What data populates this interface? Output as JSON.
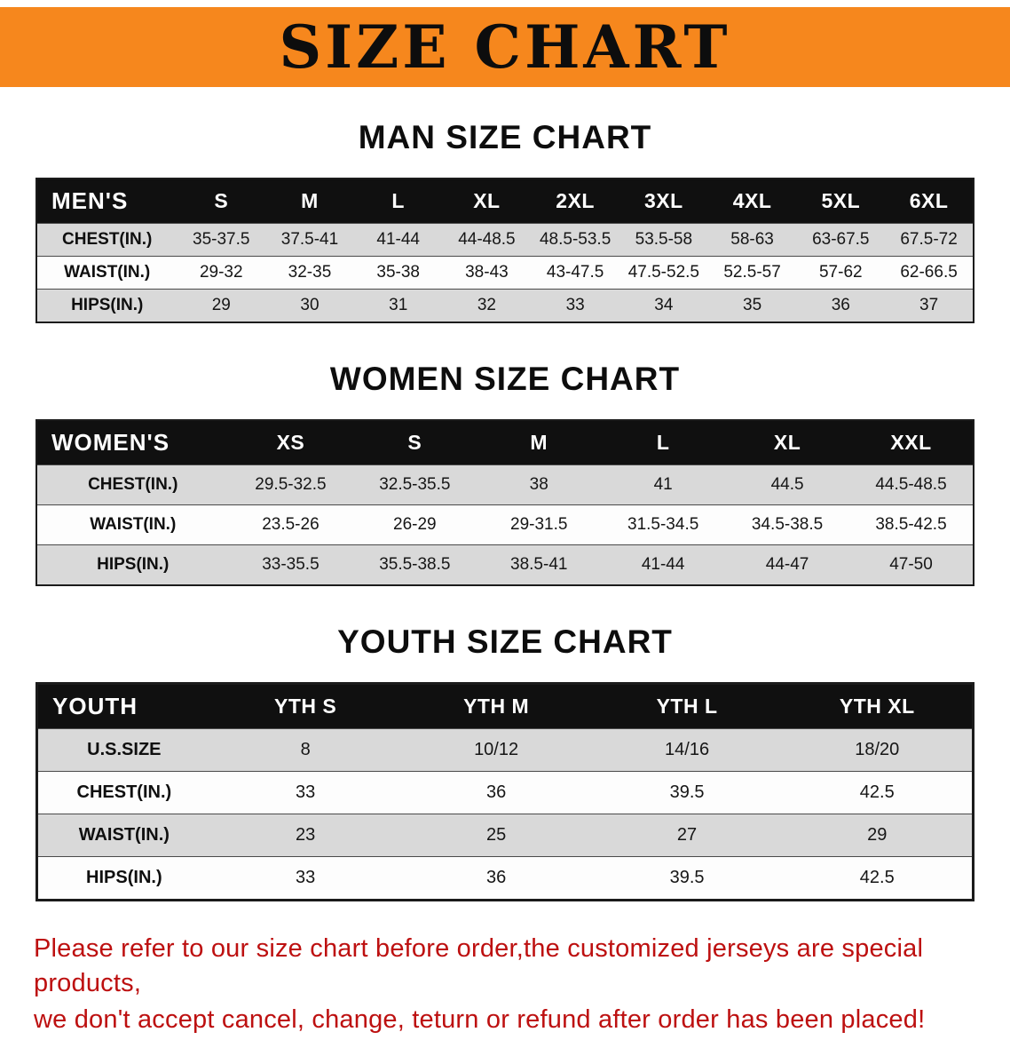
{
  "banner": {
    "title": "SIZE CHART"
  },
  "colors": {
    "banner_bg": "#F6871D",
    "table_header_bg": "#101010",
    "row_alt_bg": "#D9D9D9",
    "note_color": "#BD1010"
  },
  "sections": [
    {
      "heading": "MAN SIZE CHART",
      "header_label": "MEN'S",
      "columns": [
        "S",
        "M",
        "L",
        "XL",
        "2XL",
        "3XL",
        "4XL",
        "5XL",
        "6XL"
      ],
      "rows": [
        {
          "label": "CHEST(IN.)",
          "values": [
            "35-37.5",
            "37.5-41",
            "41-44",
            "44-48.5",
            "48.5-53.5",
            "53.5-58",
            "58-63",
            "63-67.5",
            "67.5-72"
          ]
        },
        {
          "label": "WAIST(IN.)",
          "values": [
            "29-32",
            "32-35",
            "35-38",
            "38-43",
            "43-47.5",
            "47.5-52.5",
            "52.5-57",
            "57-62",
            "62-66.5"
          ]
        },
        {
          "label": "HIPS(IN.)",
          "values": [
            "29",
            "30",
            "31",
            "32",
            "33",
            "34",
            "35",
            "36",
            "37"
          ]
        }
      ]
    },
    {
      "heading": "WOMEN SIZE CHART",
      "header_label": "WOMEN'S",
      "columns": [
        "XS",
        "S",
        "M",
        "L",
        "XL",
        "XXL"
      ],
      "rows": [
        {
          "label": "CHEST(IN.)",
          "values": [
            "29.5-32.5",
            "32.5-35.5",
            "38",
            "41",
            "44.5",
            "44.5-48.5"
          ]
        },
        {
          "label": "WAIST(IN.)",
          "values": [
            "23.5-26",
            "26-29",
            "29-31.5",
            "31.5-34.5",
            "34.5-38.5",
            "38.5-42.5"
          ]
        },
        {
          "label": "HIPS(IN.)",
          "values": [
            "33-35.5",
            "35.5-38.5",
            "38.5-41",
            "41-44",
            "44-47",
            "47-50"
          ]
        }
      ]
    },
    {
      "heading": "YOUTH SIZE CHART",
      "header_label": "YOUTH",
      "columns": [
        "YTH S",
        "YTH M",
        "YTH L",
        "YTH XL"
      ],
      "rows": [
        {
          "label": "U.S.SIZE",
          "values": [
            "8",
            "10/12",
            "14/16",
            "18/20"
          ]
        },
        {
          "label": "CHEST(IN.)",
          "values": [
            "33",
            "36",
            "39.5",
            "42.5"
          ]
        },
        {
          "label": "WAIST(IN.)",
          "values": [
            "23",
            "25",
            "27",
            "29"
          ]
        },
        {
          "label": "HIPS(IN.)",
          "values": [
            "33",
            "36",
            "39.5",
            "42.5"
          ]
        }
      ]
    }
  ],
  "note": {
    "line1": "Please refer to our size chart before order,the customized jerseys are special products,",
    "line2": "we don't accept cancel, change, teturn or refund after order has been placed!"
  }
}
